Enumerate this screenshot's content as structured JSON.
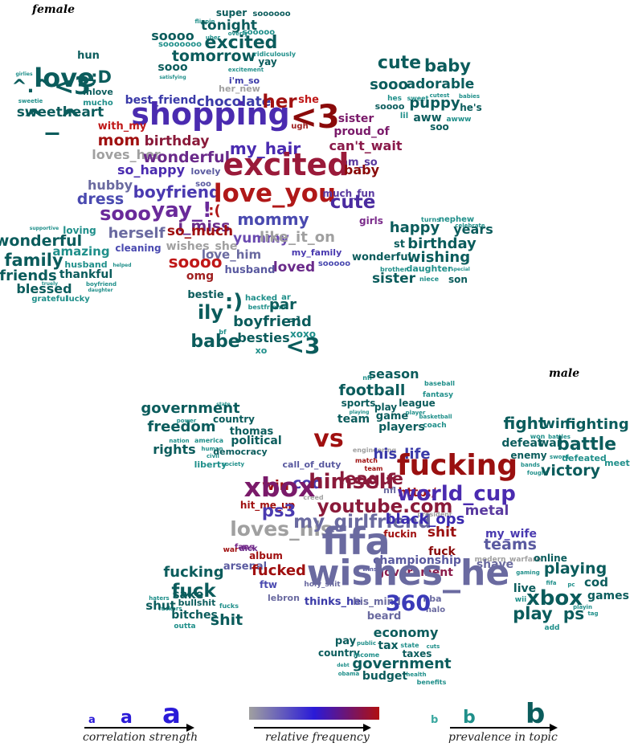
{
  "panels": [
    {
      "title": "female"
    },
    {
      "title": "male"
    }
  ],
  "clouds": {
    "female": [
      {
        "w": "super",
        "c": "#0b5c5c"
      },
      {
        "w": "soooooo",
        "c": "#0b5c5c"
      },
      {
        "w": "flippin",
        "c": "#1f8f8a"
      },
      {
        "w": "tonight",
        "c": "#0b5c5c"
      },
      {
        "w": "soooo",
        "c": "#0b5c5c"
      },
      {
        "w": "uber",
        "c": "#1f8f8a"
      },
      {
        "w": "overly",
        "c": "#1f8f8a"
      },
      {
        "w": "sooooo",
        "c": "#1f8f8a"
      },
      {
        "w": "excited",
        "c": "#0b5c5c"
      },
      {
        "w": "sooooooo",
        "c": "#1f8f8a"
      },
      {
        "w": "tomorrow",
        "c": "#0b5c5c"
      },
      {
        "w": "ridiculously",
        "c": "#1f8f8a"
      },
      {
        "w": "sooo",
        "c": "#0b5c5c"
      },
      {
        "w": "satisfying",
        "c": "#1f8f8a"
      },
      {
        "w": "yay",
        "c": "#0b5c5c"
      },
      {
        "w": "excitement",
        "c": "#1f8f8a"
      },
      {
        "w": "her_new",
        "c": "#a0a0a0"
      },
      {
        "w": "i'm_so",
        "c": "#3a3aa8"
      },
      {
        "w": "hun",
        "c": "#0b5c5c"
      },
      {
        "w": "girlies",
        "c": "#1f8f8a"
      },
      {
        "w": "love",
        "c": "#0b5c5c"
      },
      {
        "w": ";D",
        "c": "#0b5c5c"
      },
      {
        "w": "^.^",
        "c": "#0b5c5c"
      },
      {
        "w": "<3",
        "c": "#0b5c5c"
      },
      {
        "w": "inlove",
        "c": "#0b5c5c"
      },
      {
        "w": "mucho",
        "c": "#1f8f8a"
      },
      {
        "w": "sweetie",
        "c": "#1f8f8a"
      },
      {
        "w": "sweetheart",
        "c": "#0b5c5c"
      },
      {
        "w": "^_^",
        "c": "#0b5c5c"
      },
      {
        "w": "cute",
        "c": "#0b5c5c"
      },
      {
        "w": "baby",
        "c": "#0b5c5c"
      },
      {
        "w": "sooo",
        "c": "#0b5c5c"
      },
      {
        "w": "adorable",
        "c": "#0b5c5c"
      },
      {
        "w": "sweet",
        "c": "#1f8f8a"
      },
      {
        "w": "hes",
        "c": "#1f8f8a"
      },
      {
        "w": "cutest",
        "c": "#1f8f8a"
      },
      {
        "w": "babies",
        "c": "#1f8f8a"
      },
      {
        "w": "soooo",
        "c": "#0b5c5c"
      },
      {
        "w": "puppy",
        "c": "#0b5c5c"
      },
      {
        "w": "he's",
        "c": "#0b5c5c"
      },
      {
        "w": "lil",
        "c": "#1f8f8a"
      },
      {
        "w": "aww",
        "c": "#0b5c5c"
      },
      {
        "w": "awww",
        "c": "#1f8f8a"
      },
      {
        "w": "soo",
        "c": "#0b5c5c"
      },
      {
        "w": "best_friend",
        "c": "#3a3aa8"
      },
      {
        "w": "chocolate",
        "c": "#3a3aa8"
      },
      {
        "w": "her",
        "c": "#a01010"
      },
      {
        "w": "she",
        "c": "#c01818"
      },
      {
        "w": "shopping",
        "c": "#4a2bb0"
      },
      {
        "w": "<3",
        "c": "#8a0a0a"
      },
      {
        "w": "with_my",
        "c": "#c01818"
      },
      {
        "w": "ugh",
        "c": "#a02020"
      },
      {
        "w": "sister",
        "c": "#7a1a6a"
      },
      {
        "w": "proud_of",
        "c": "#7a1a6a"
      },
      {
        "w": "mom",
        "c": "#a01010"
      },
      {
        "w": "birthday",
        "c": "#8a1a3a"
      },
      {
        "w": "my_hair",
        "c": "#4a2bb0"
      },
      {
        "w": "can't_wait",
        "c": "#8a1a4a"
      },
      {
        "w": "loves_her",
        "c": "#a0a0a0"
      },
      {
        "w": "wonderful",
        "c": "#6a2a8a"
      },
      {
        "w": "am_so",
        "c": "#5a3aa0"
      },
      {
        "w": "so_happy",
        "c": "#4a2bb0"
      },
      {
        "w": "lovely",
        "c": "#5a5aa0"
      },
      {
        "w": "excited",
        "c": "#9a1a3a"
      },
      {
        "w": "baby",
        "c": "#8a0a0a"
      },
      {
        "w": "hubby",
        "c": "#6a6aa0"
      },
      {
        "w": "soo",
        "c": "#5a5aa0"
      },
      {
        "w": "boyfriend",
        "c": "#4a3ab0"
      },
      {
        "w": "love_you",
        "c": "#b01818"
      },
      {
        "w": "dress",
        "c": "#4a4ab0"
      },
      {
        "w": "much_fun",
        "c": "#5a3aa0"
      },
      {
        "w": "cute",
        "c": "#4a2ba0"
      },
      {
        "w": "sooo",
        "c": "#6a2a9a"
      },
      {
        "w": "yay_!",
        "c": "#6a2a9a"
      },
      {
        "w": ":(",
        "c": "#b01818"
      },
      {
        "w": "i_miss",
        "c": "#6a2a8a"
      },
      {
        "w": "mommy",
        "c": "#4a4ab0"
      },
      {
        "w": "girls",
        "c": "#7a2a8a"
      },
      {
        "w": "herself",
        "c": "#6a6aa0"
      },
      {
        "w": "so_much",
        "c": "#a01010"
      },
      {
        "w": "yummy",
        "c": "#6a4ab0"
      },
      {
        "w": "like_it_on",
        "c": "#a0a0a0"
      },
      {
        "w": "wishes_she",
        "c": "#a0a0a0"
      },
      {
        "w": "cleaning",
        "c": "#4a4ab0"
      },
      {
        "w": "love_him",
        "c": "#6a6aa0"
      },
      {
        "w": "my_family",
        "c": "#4a3ab0"
      },
      {
        "w": "soooo",
        "c": "#c01818"
      },
      {
        "w": "sooooo",
        "c": "#4a4ab0"
      },
      {
        "w": "omg",
        "c": "#a02020"
      },
      {
        "w": "husband",
        "c": "#5a5aa0"
      },
      {
        "w": "loved",
        "c": "#6a2a8a"
      },
      {
        "w": "supportive",
        "c": "#1f8f8a"
      },
      {
        "w": "loving",
        "c": "#1f8f8a"
      },
      {
        "w": "wonderful",
        "c": "#0b5c5c"
      },
      {
        "w": "amazing",
        "c": "#1f8f8a"
      },
      {
        "w": "family",
        "c": "#0b5c5c"
      },
      {
        "w": "husband",
        "c": "#1f8f8a"
      },
      {
        "w": "helped",
        "c": "#1f8f8a"
      },
      {
        "w": "friends",
        "c": "#0b5c5c"
      },
      {
        "w": "thankful",
        "c": "#0b5c5c"
      },
      {
        "w": "blessed",
        "c": "#0b5c5c"
      },
      {
        "w": "truely",
        "c": "#1f8f8a"
      },
      {
        "w": "boyfriend",
        "c": "#1f8f8a"
      },
      {
        "w": "daughter",
        "c": "#1f8f8a"
      },
      {
        "w": "grateful",
        "c": "#1f8f8a"
      },
      {
        "w": "lucky",
        "c": "#1f8f8a"
      },
      {
        "w": "turns",
        "c": "#1f8f8a"
      },
      {
        "w": "nephew",
        "c": "#1f8f8a"
      },
      {
        "w": "celebrate",
        "c": "#1f8f8a"
      },
      {
        "w": "happy",
        "c": "#0b5c5c"
      },
      {
        "w": "years",
        "c": "#0b5c5c"
      },
      {
        "w": "st",
        "c": "#0b5c5c"
      },
      {
        "w": "birthday",
        "c": "#0b5c5c"
      },
      {
        "w": "wonderful",
        "c": "#0b5c5c"
      },
      {
        "w": "wishing",
        "c": "#0b5c5c"
      },
      {
        "w": "brother",
        "c": "#1f8f8a"
      },
      {
        "w": "daughter",
        "c": "#1f8f8a"
      },
      {
        "w": "special",
        "c": "#1f8f8a"
      },
      {
        "w": "sister",
        "c": "#0b5c5c"
      },
      {
        "w": "niece",
        "c": "#1f8f8a"
      },
      {
        "w": "son",
        "c": "#0b5c5c"
      },
      {
        "w": "bestie",
        "c": "#0b5c5c"
      },
      {
        "w": ":)",
        "c": "#0b5c5c"
      },
      {
        "w": "hacked",
        "c": "#1f8f8a"
      },
      {
        "w": "ar",
        "c": "#1f8f8a"
      },
      {
        "w": "bestfriend",
        "c": "#1f8f8a"
      },
      {
        "w": "par",
        "c": "#0b5c5c"
      },
      {
        "w": "ily",
        "c": "#0b5c5c"
      },
      {
        "w": "boyfriend",
        "c": "#0b5c5c"
      },
      {
        "w": "=]",
        "c": "#0b5c5c"
      },
      {
        "w": "bf",
        "c": "#1f8f8a"
      },
      {
        "w": "babe",
        "c": "#0b5c5c"
      },
      {
        "w": "besties",
        "c": "#0b5c5c"
      },
      {
        "w": "xoxo",
        "c": "#1f8f8a"
      },
      {
        "w": "xo",
        "c": "#1f8f8a"
      },
      {
        "w": "<3",
        "c": "#0b5c5c"
      }
    ],
    "male": [
      {
        "w": "nfl",
        "c": "#1f8f8a"
      },
      {
        "w": "baseball",
        "c": "#1f8f8a"
      },
      {
        "w": "season",
        "c": "#0b5c5c"
      },
      {
        "w": "football",
        "c": "#0b5c5c"
      },
      {
        "w": "fantasy",
        "c": "#1f8f8a"
      },
      {
        "w": "league",
        "c": "#0b5c5c"
      },
      {
        "w": "player",
        "c": "#1f8f8a"
      },
      {
        "w": "sports",
        "c": "#0b5c5c"
      },
      {
        "w": "play",
        "c": "#0b5c5c"
      },
      {
        "w": "playing",
        "c": "#1f8f8a"
      },
      {
        "w": "basketball",
        "c": "#1f8f8a"
      },
      {
        "w": "team",
        "c": "#0b5c5c"
      },
      {
        "w": "game",
        "c": "#0b5c5c"
      },
      {
        "w": "coach",
        "c": "#1f8f8a"
      },
      {
        "w": "players",
        "c": "#0b5c5c"
      },
      {
        "w": "state",
        "c": "#1f8f8a"
      },
      {
        "w": "government",
        "c": "#0b5c5c"
      },
      {
        "w": "freedom",
        "c": "#0b5c5c"
      },
      {
        "w": "country",
        "c": "#0b5c5c"
      },
      {
        "w": "power",
        "c": "#1f8f8a"
      },
      {
        "w": "thomas",
        "c": "#0b5c5c"
      },
      {
        "w": "nation",
        "c": "#1f8f8a"
      },
      {
        "w": "america",
        "c": "#1f8f8a"
      },
      {
        "w": "political",
        "c": "#0b5c5c"
      },
      {
        "w": "human",
        "c": "#1f8f8a"
      },
      {
        "w": "rights",
        "c": "#0b5c5c"
      },
      {
        "w": "civil",
        "c": "#1f8f8a"
      },
      {
        "w": "democracy",
        "c": "#0b5c5c"
      },
      {
        "w": "liberty",
        "c": "#1f8f8a"
      },
      {
        "w": "society",
        "c": "#1f8f8a"
      },
      {
        "w": "fight",
        "c": "#0b5c5c"
      },
      {
        "w": "win",
        "c": "#0b5c5c"
      },
      {
        "w": "fighting",
        "c": "#0b5c5c"
      },
      {
        "w": "won",
        "c": "#1f8f8a"
      },
      {
        "w": "battles",
        "c": "#1f8f8a"
      },
      {
        "w": "defeat",
        "c": "#0b5c5c"
      },
      {
        "w": "war",
        "c": "#0b5c5c"
      },
      {
        "w": "battle",
        "c": "#0b5c5c"
      },
      {
        "w": "enemy",
        "c": "#0b5c5c"
      },
      {
        "w": "sword",
        "c": "#1f8f8a"
      },
      {
        "w": "defeated",
        "c": "#1f8f8a"
      },
      {
        "w": "meet",
        "c": "#1f8f8a"
      },
      {
        "w": "bands",
        "c": "#1f8f8a"
      },
      {
        "w": "fought",
        "c": "#1f8f8a"
      },
      {
        "w": "victory",
        "c": "#0b5c5c"
      },
      {
        "w": "vs",
        "c": "#a01010"
      },
      {
        "w": "engineering",
        "c": "#a0a0a0"
      },
      {
        "w": "his_life",
        "c": "#3a3aa8"
      },
      {
        "w": "call_of_duty",
        "c": "#5a5aa0"
      },
      {
        "w": "match",
        "c": "#a01010"
      },
      {
        "w": "team",
        "c": "#a01010"
      },
      {
        "w": "fucking",
        "c": "#9a1010"
      },
      {
        "w": "cod",
        "c": "#4a3ab0"
      },
      {
        "w": "league",
        "c": "#8a1a3a"
      },
      {
        "w": "nfl",
        "c": "#6a6aa0"
      },
      {
        "w": "win",
        "c": "#a01010"
      },
      {
        "w": "creed",
        "c": "#a0a0a0"
      },
      {
        "w": "xbox",
        "c": "#7a1a6a"
      },
      {
        "w": "himself",
        "c": "#8a1a3a"
      },
      {
        "w": "http:/",
        "c": "#a01010"
      },
      {
        "w": "world_cup",
        "c": "#4a2bb0"
      },
      {
        "w": "hit_me_up",
        "c": "#a01010"
      },
      {
        "w": "president",
        "c": "#a0a0a0"
      },
      {
        "w": "ps3",
        "c": "#4a3ab0"
      },
      {
        "w": "youtube.com",
        "c": "#8a1a3a"
      },
      {
        "w": "metal",
        "c": "#5a3aa0"
      },
      {
        "w": "loves_his",
        "c": "#a0a0a0"
      },
      {
        "w": "my_girlfriend",
        "c": "#6a6aa0"
      },
      {
        "w": "black_ops",
        "c": "#3a2ab0"
      },
      {
        "w": "shit",
        "c": "#9a1010"
      },
      {
        "w": "my_wife",
        "c": "#4a3ab0"
      },
      {
        "w": "fuckin",
        "c": "#a01010"
      },
      {
        "w": "fans",
        "c": "#7a2a8a"
      },
      {
        "w": "teams",
        "c": "#5a5aa0"
      },
      {
        "w": "war",
        "c": "#a01010"
      },
      {
        "w": "dick",
        "c": "#6a2a8a"
      },
      {
        "w": "fifa",
        "c": "#6a6aa0"
      },
      {
        "w": "fuck",
        "c": "#8a0a0a"
      },
      {
        "w": "modern_warfare",
        "c": "#a0a0a0"
      },
      {
        "w": "album",
        "c": "#a01010"
      },
      {
        "w": "championship",
        "c": "#5a5aa0"
      },
      {
        "w": "government",
        "c": "#8a1a4a"
      },
      {
        "w": "shave",
        "c": "#6a6aa0"
      },
      {
        "w": "arsenal",
        "c": "#5a5aa0"
      },
      {
        "w": "wins",
        "c": "#5a5aa0"
      },
      {
        "w": "fucked",
        "c": "#a01010"
      },
      {
        "w": "wishes_he",
        "c": "#6a6aa0"
      },
      {
        "w": "ftw",
        "c": "#4a4ab0"
      },
      {
        "w": "holy_shit",
        "c": "#6a6aa0"
      },
      {
        "w": "nba",
        "c": "#6a6aa0"
      },
      {
        "w": "lebron",
        "c": "#6a6aa0"
      },
      {
        "w": "halo",
        "c": "#6a6aa0"
      },
      {
        "w": "thinks_he",
        "c": "#3a3aa8"
      },
      {
        "w": "his_mind",
        "c": "#6a6aa0"
      },
      {
        "w": "360",
        "c": "#3a3ab8"
      },
      {
        "w": "beard",
        "c": "#6a6aa0"
      },
      {
        "w": "fucking",
        "c": "#0b5c5c"
      },
      {
        "w": "fuck",
        "c": "#0b5c5c"
      },
      {
        "w": "sake",
        "c": "#0b5c5c"
      },
      {
        "w": "haters",
        "c": "#1f8f8a"
      },
      {
        "w": "fuckers",
        "c": "#1f8f8a"
      },
      {
        "w": "shut",
        "c": "#0b5c5c"
      },
      {
        "w": "bullshit",
        "c": "#0b5c5c"
      },
      {
        "w": "fucks",
        "c": "#1f8f8a"
      },
      {
        "w": "bitches",
        "c": "#0b5c5c"
      },
      {
        "w": "outta",
        "c": "#1f8f8a"
      },
      {
        "w": "shit",
        "c": "#0b5c5c"
      },
      {
        "w": "online",
        "c": "#0b5c5c"
      },
      {
        "w": "playing",
        "c": "#0b5c5c"
      },
      {
        "w": "gaming",
        "c": "#1f8f8a"
      },
      {
        "w": "fifa",
        "c": "#1f8f8a"
      },
      {
        "w": "pc",
        "c": "#1f8f8a"
      },
      {
        "w": "cod",
        "c": "#0b5c5c"
      },
      {
        "w": "live",
        "c": "#0b5c5c"
      },
      {
        "w": "xbox",
        "c": "#0b5c5c"
      },
      {
        "w": "games",
        "c": "#0b5c5c"
      },
      {
        "w": "wii",
        "c": "#1f8f8a"
      },
      {
        "w": "playin",
        "c": "#1f8f8a"
      },
      {
        "w": "tag",
        "c": "#1f8f8a"
      },
      {
        "w": "play",
        "c": "#0b5c5c"
      },
      {
        "w": "ps",
        "c": "#0b5c5c"
      },
      {
        "w": "add",
        "c": "#1f8f8a"
      },
      {
        "w": "economy",
        "c": "#0b5c5c"
      },
      {
        "w": "pay",
        "c": "#0b5c5c"
      },
      {
        "w": "public",
        "c": "#1f8f8a"
      },
      {
        "w": "tax",
        "c": "#0b5c5c"
      },
      {
        "w": "state",
        "c": "#1f8f8a"
      },
      {
        "w": "cuts",
        "c": "#1f8f8a"
      },
      {
        "w": "country",
        "c": "#0b5c5c"
      },
      {
        "w": "income",
        "c": "#1f8f8a"
      },
      {
        "w": "taxes",
        "c": "#0b5c5c"
      },
      {
        "w": "government",
        "c": "#0b5c5c"
      },
      {
        "w": "debt",
        "c": "#1f8f8a"
      },
      {
        "w": "obama",
        "c": "#1f8f8a"
      },
      {
        "w": "budget",
        "c": "#0b5c5c"
      },
      {
        "w": "health",
        "c": "#1f8f8a"
      },
      {
        "w": "benefits",
        "c": "#1f8f8a"
      }
    ]
  },
  "legend": {
    "correlation": {
      "glyph": "a",
      "caption": "correlation strength",
      "color": "#2a1ad8"
    },
    "frequency": {
      "caption": "relative frequency",
      "gradient": [
        "#a0a0a0",
        "#2a1ad8",
        "#b01010"
      ]
    },
    "prevalence": {
      "glyph": "b",
      "caption": "prevalence in topic",
      "colors": [
        "#3aa8a0",
        "#1f8f8a",
        "#0b5c5c"
      ]
    }
  }
}
